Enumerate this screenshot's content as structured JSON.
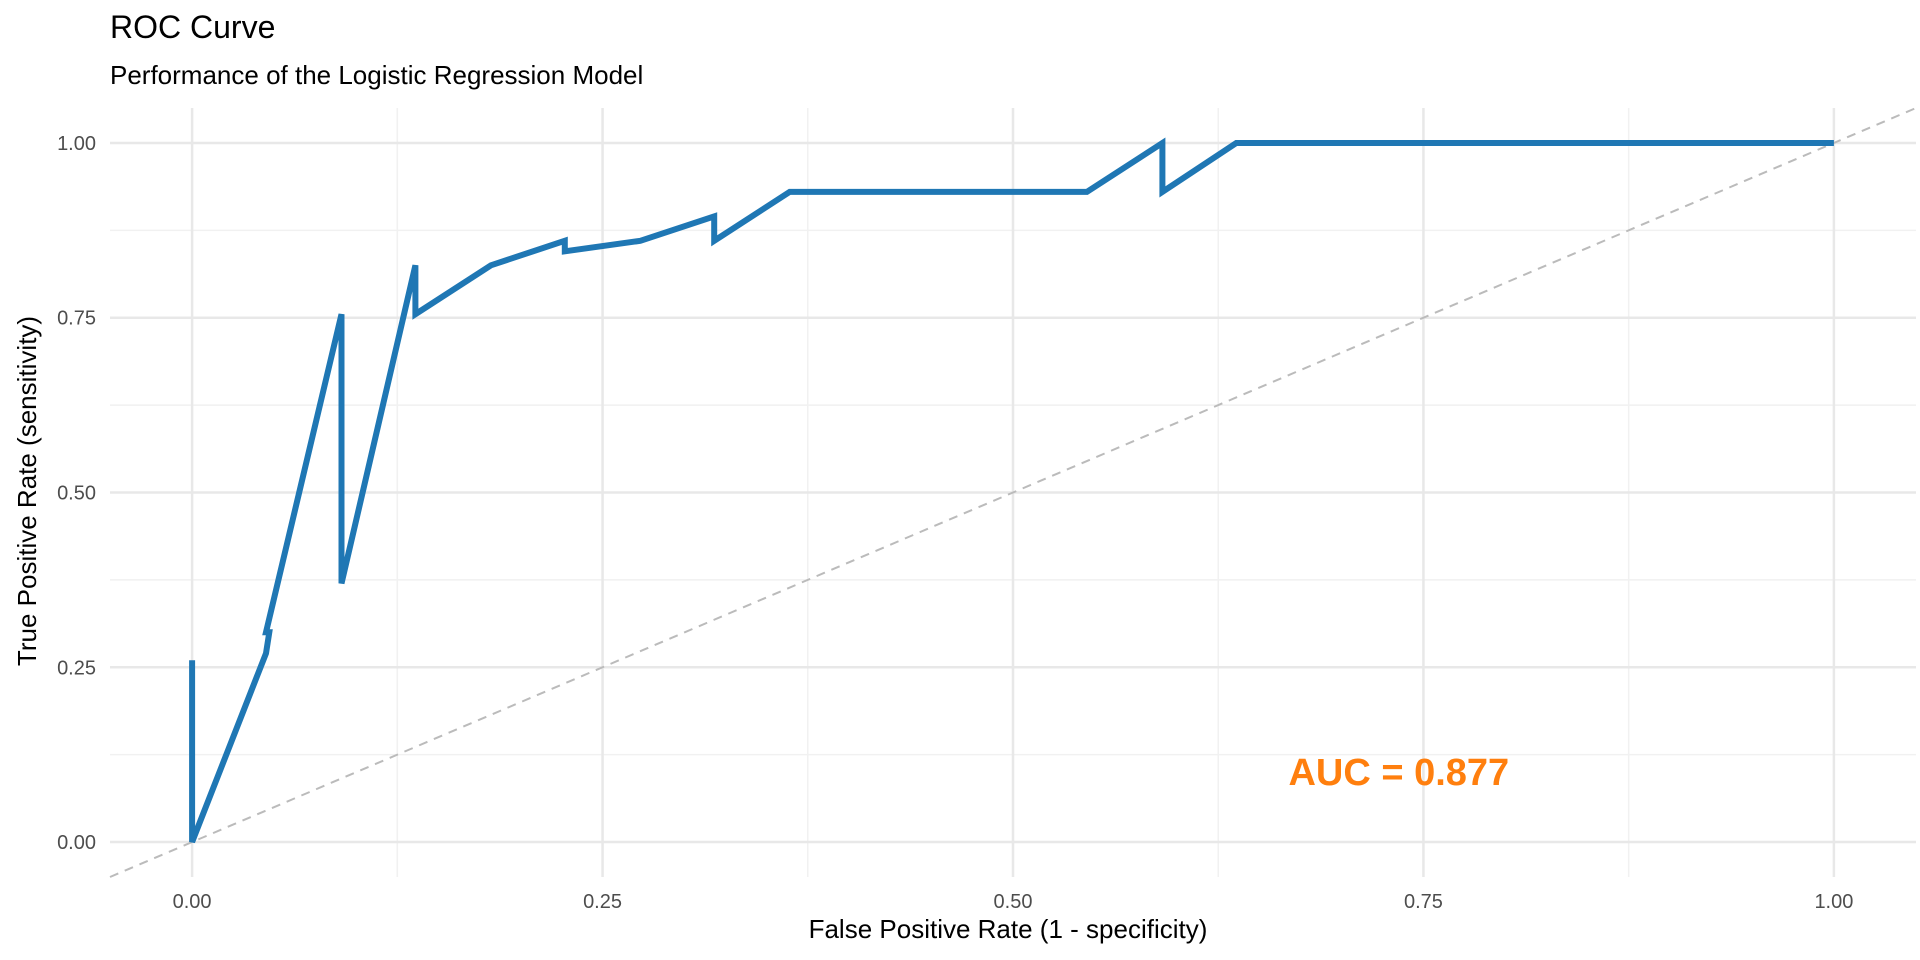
{
  "chart_data": {
    "type": "line",
    "title": "ROC Curve",
    "subtitle": "Performance of the Logistic Regression Model",
    "xlabel": "False Positive Rate (1 - specificity)",
    "ylabel": "True Positive Rate (sensitivity)",
    "xlim": [
      -0.05,
      1.05
    ],
    "ylim": [
      -0.05,
      1.05
    ],
    "x_ticks": [
      0.0,
      0.25,
      0.5,
      0.75,
      1.0
    ],
    "x_tick_labels": [
      "0.00",
      "0.25",
      "0.50",
      "0.75",
      "1.00"
    ],
    "y_ticks": [
      0.0,
      0.25,
      0.5,
      0.75,
      1.0
    ],
    "y_tick_labels": [
      "0.00",
      "0.25",
      "0.50",
      "0.75",
      "1.00"
    ],
    "grid": true,
    "series": [
      {
        "color": "#1f77b4",
        "x": [
          0.0,
          0.0,
          0.0,
          0.045,
          0.047,
          0.045,
          0.091,
          0.091,
          0.091,
          0.136,
          0.136,
          0.136,
          0.182,
          0.227,
          0.227,
          0.273,
          0.318,
          0.318,
          0.364,
          0.545,
          0.591,
          0.591,
          0.636,
          1.0
        ],
        "y": [
          0.26,
          0.0,
          0.0,
          0.27,
          0.3,
          0.3,
          0.755,
          0.37,
          0.37,
          0.825,
          0.755,
          0.755,
          0.825,
          0.86,
          0.845,
          0.86,
          0.895,
          0.86,
          0.93,
          0.93,
          1.0,
          0.93,
          1.0,
          1.0
        ]
      }
    ],
    "reference_line": {
      "x": [
        -0.05,
        1.05
      ],
      "y": [
        -0.05,
        1.05
      ],
      "style": "dashed",
      "color": "#bbbbbb"
    },
    "annotation": {
      "text": "AUC = 0.877",
      "x": 0.735,
      "y": 0.1,
      "color": "#ff7f0e"
    }
  }
}
